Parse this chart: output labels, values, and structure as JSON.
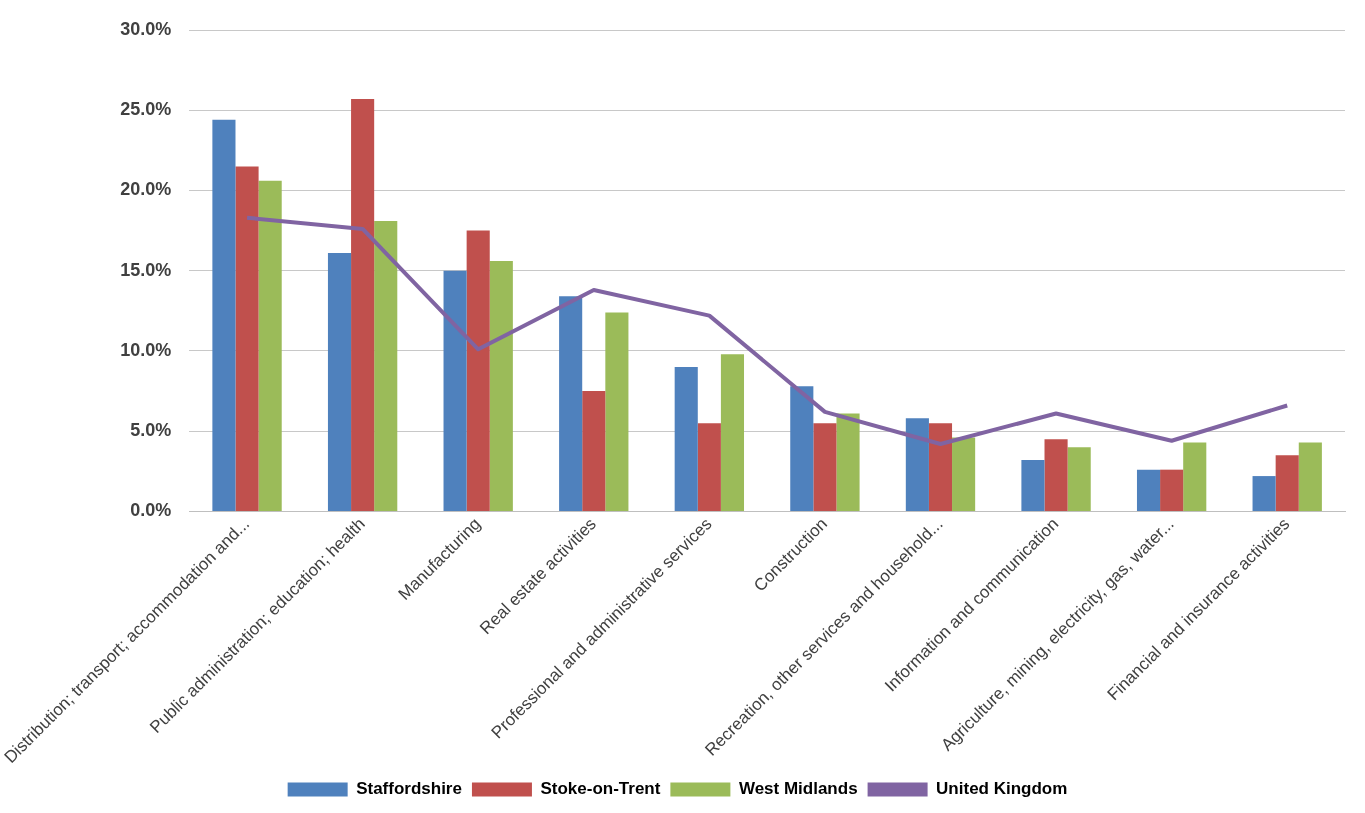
{
  "chart_data": {
    "type": "bar",
    "categories": [
      "Distribution; transport; accommodation and...",
      "Public administration; education; health",
      "Manufacturing",
      "Real estate activities",
      "Professional and administrative services",
      "Construction",
      "Recreation, other services and household...",
      "Information and communication",
      "Agriculture, mining, electricity, gas, water...",
      "Financial and insurance activities"
    ],
    "series": [
      {
        "name": "Staffordshire",
        "color": "#4f81bd",
        "values": [
          24.4,
          16.1,
          15.0,
          13.4,
          9.0,
          7.8,
          5.8,
          3.2,
          2.6,
          2.2
        ]
      },
      {
        "name": "Stoke-on-Trent",
        "color": "#c0504d",
        "values": [
          21.5,
          25.7,
          17.5,
          7.5,
          5.5,
          5.5,
          5.5,
          4.5,
          2.6,
          3.5
        ]
      },
      {
        "name": "West Midlands",
        "color": "#9bbb59",
        "values": [
          20.6,
          18.1,
          15.6,
          12.4,
          9.8,
          6.1,
          4.6,
          4.0,
          4.3,
          4.3
        ]
      },
      {
        "name": "United Kingdom",
        "color": "#8064a2",
        "type": "line",
        "values": [
          18.3,
          17.6,
          10.1,
          13.8,
          12.2,
          6.2,
          4.2,
          6.1,
          4.4,
          6.6
        ]
      }
    ],
    "ylim": [
      0,
      30
    ],
    "yticks": [
      {
        "value": 0,
        "label": "0.0%"
      },
      {
        "value": 5,
        "label": "5.0%"
      },
      {
        "value": 10,
        "label": "10.0%"
      },
      {
        "value": 15,
        "label": "15.0%"
      },
      {
        "value": 20,
        "label": "20.0%"
      },
      {
        "value": 25,
        "label": "25.0%"
      },
      {
        "value": 30,
        "label": "30.0%"
      }
    ],
    "grid": "y",
    "legend": "bottom",
    "marker": "none"
  }
}
